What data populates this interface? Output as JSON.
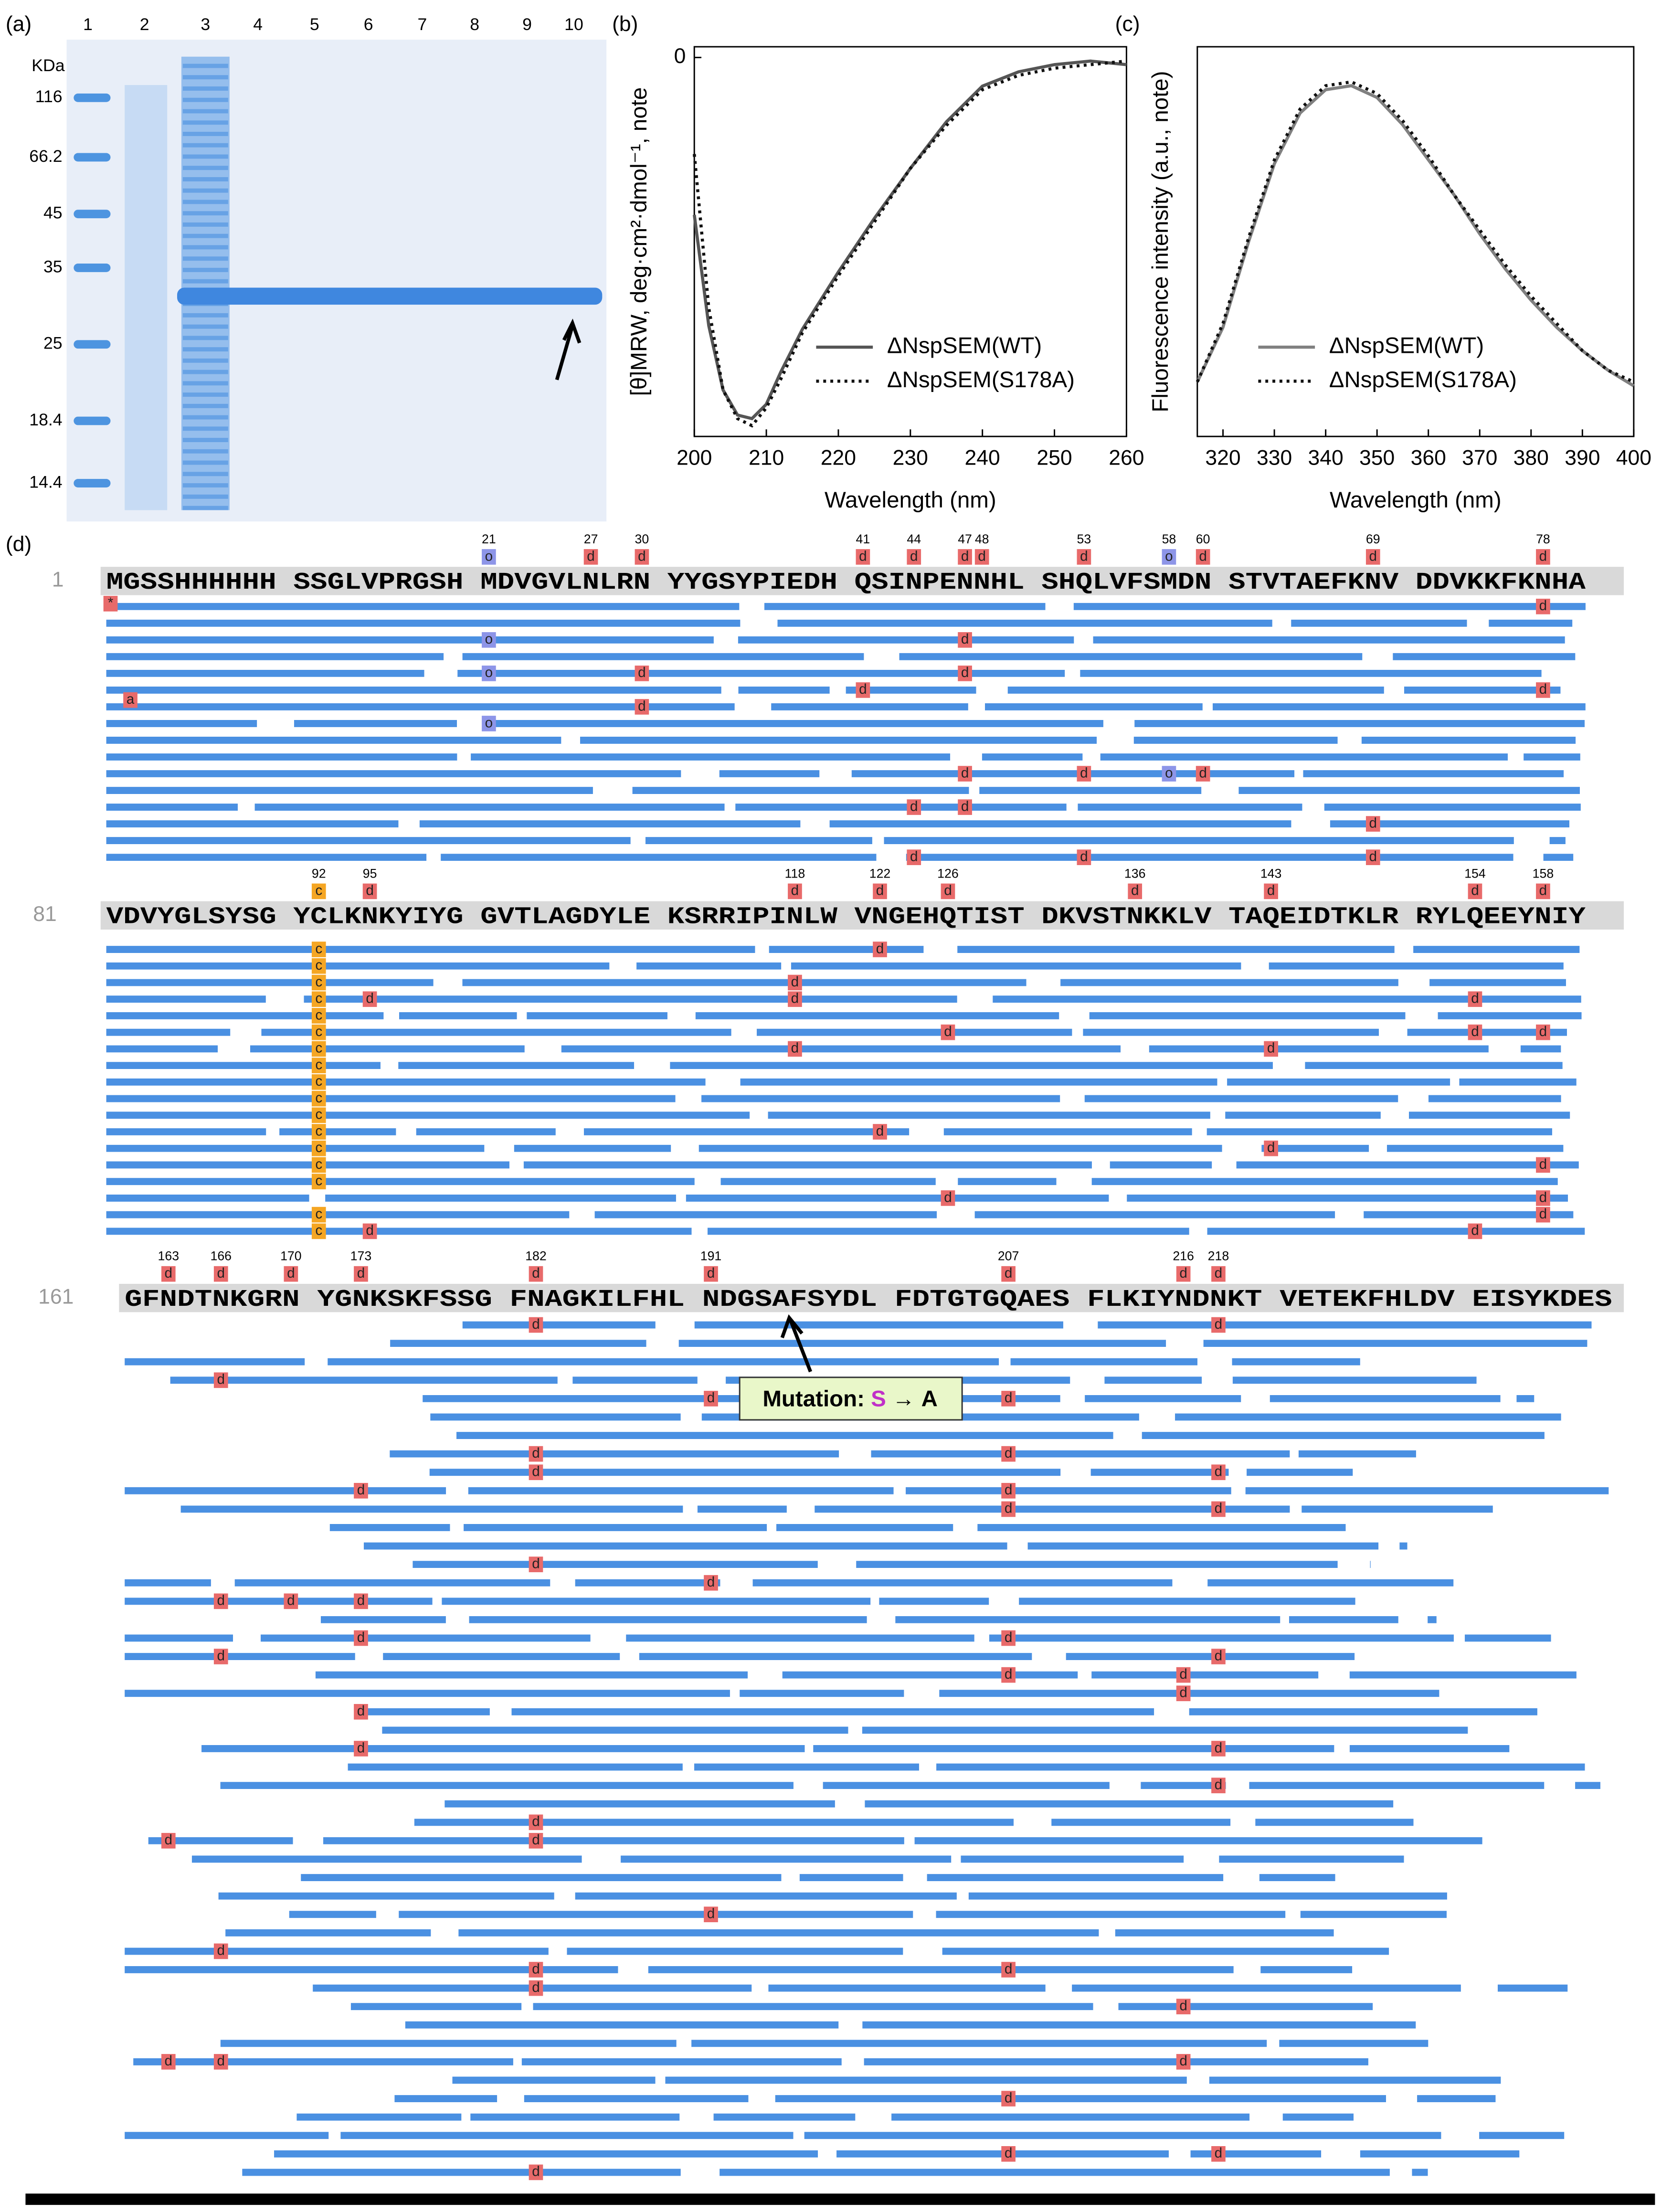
{
  "gel": {
    "panel": "(a)",
    "lanes": [
      "1",
      "2",
      "3",
      "4",
      "5",
      "6",
      "7",
      "8",
      "9",
      "10"
    ],
    "unit": "KDa",
    "markers": [
      116,
      66.2,
      45,
      35,
      25,
      18.4,
      14.4
    ]
  },
  "chart_data": [
    {
      "type": "line",
      "panel": "(b)",
      "xlabel": "Wavelength (nm)",
      "ylabel": "[θ]MRW, deg·cm²·dmol⁻¹, note",
      "x": [
        200,
        202,
        204,
        206,
        208,
        210,
        212,
        215,
        220,
        225,
        230,
        235,
        240,
        245,
        250,
        255,
        260
      ],
      "xlim": [
        200,
        260
      ],
      "xticks": [
        200,
        210,
        220,
        230,
        240,
        250,
        260
      ],
      "ylim": [
        -106,
        3
      ],
      "yticks": [
        0
      ],
      "series": [
        {
          "name": "ΔNspSEM(WT)",
          "color": "#555555",
          "style": "solid",
          "values": [
            -44,
            -75,
            -93,
            -100,
            -101,
            -97,
            -88,
            -76,
            -60,
            -45,
            -31,
            -18,
            -8,
            -4,
            -2,
            -1,
            -2
          ]
        },
        {
          "name": "ΔNspSEM(S178A)",
          "color": "#111111",
          "style": "dotted",
          "values": [
            -27,
            -70,
            -93,
            -101,
            -103,
            -98,
            -90,
            -77,
            -61,
            -46,
            -31,
            -19,
            -9,
            -5,
            -3,
            -2,
            -1
          ]
        }
      ]
    },
    {
      "type": "line",
      "panel": "(c)",
      "xlabel": "Wavelength (nm)",
      "ylabel": "Fluorescence intensity (a.u., note)",
      "x": [
        315,
        320,
        325,
        330,
        335,
        340,
        345,
        350,
        355,
        360,
        365,
        370,
        375,
        380,
        385,
        390,
        395,
        400
      ],
      "xlim": [
        315,
        400
      ],
      "xticks": [
        320,
        330,
        340,
        350,
        360,
        370,
        380,
        390,
        400
      ],
      "ylim": [
        0,
        100
      ],
      "series": [
        {
          "name": "ΔNspSEM(WT)",
          "color": "#808080",
          "style": "solid",
          "values": [
            14,
            28,
            50,
            70,
            83,
            89,
            90,
            87,
            80,
            71,
            62,
            52,
            43,
            35,
            28,
            22,
            17,
            13
          ]
        },
        {
          "name": "ΔNspSEM(S178A)",
          "color": "#111111",
          "style": "dotted",
          "values": [
            14,
            29,
            51,
            71,
            84,
            90,
            91,
            88,
            81,
            72,
            62,
            53,
            44,
            36,
            29,
            22,
            17,
            14
          ]
        }
      ]
    }
  ],
  "sequence": {
    "panel": "(d)",
    "rows": [
      {
        "start": "1",
        "text": "MGSSHHHHHH SSGLVPRGSH MDVGVLNLRN YYGSYPIEDH QSINPENNHL SHQLVFSMDN STVTAEFKNV DDVKKFKNHA",
        "sites": [
          {
            "position": 21,
            "code": "o"
          },
          {
            "position": 27,
            "code": "d"
          },
          {
            "position": 30,
            "code": "d"
          },
          {
            "position": 41,
            "code": "d"
          },
          {
            "position": 44,
            "code": "d"
          },
          {
            "position": 47,
            "code": "d"
          },
          {
            "position": 48,
            "code": "d"
          },
          {
            "position": 53,
            "code": "d"
          },
          {
            "position": 58,
            "code": "o"
          },
          {
            "position": 60,
            "code": "d"
          },
          {
            "position": 69,
            "code": "d"
          },
          {
            "position": 78,
            "code": "d"
          }
        ]
      },
      {
        "start": "81",
        "text": "VDVYGLSYSG YCLKNKYIYG GVTLAGDYLE KSRRIPINLW VNGEHQTIST DKVSTNKKLV TAQEIDTKLR RYLQEEYNIY",
        "sites": [
          {
            "position": 92,
            "code": "c"
          },
          {
            "position": 95,
            "code": "d"
          },
          {
            "position": 118,
            "code": "d"
          },
          {
            "position": 122,
            "code": "d"
          },
          {
            "position": 126,
            "code": "d"
          },
          {
            "position": 136,
            "code": "d"
          },
          {
            "position": 143,
            "code": "d"
          },
          {
            "position": 154,
            "code": "d"
          },
          {
            "position": 158,
            "code": "d"
          }
        ]
      },
      {
        "start": "161",
        "text": "GFNDTNKGRN YGNKSKFSSG FNAGKILFHL NDGSAFSYDL FDTGTGQAES FLKIYNDNKT VETEKFHLDV EISYKDES",
        "sites": [
          {
            "position": 163,
            "code": "d"
          },
          {
            "position": 166,
            "code": "d"
          },
          {
            "position": 170,
            "code": "d"
          },
          {
            "position": 173,
            "code": "d"
          },
          {
            "position": 182,
            "code": "d"
          },
          {
            "position": 191,
            "code": "d"
          },
          {
            "position": 207,
            "code": "d"
          },
          {
            "position": 216,
            "code": "d"
          },
          {
            "position": 218,
            "code": "d"
          }
        ]
      }
    ],
    "n_term_codes": [
      "*",
      "a"
    ],
    "mutation": {
      "prefix": "Mutation:",
      "from": "S",
      "arrow": "→",
      "to": "A"
    }
  }
}
